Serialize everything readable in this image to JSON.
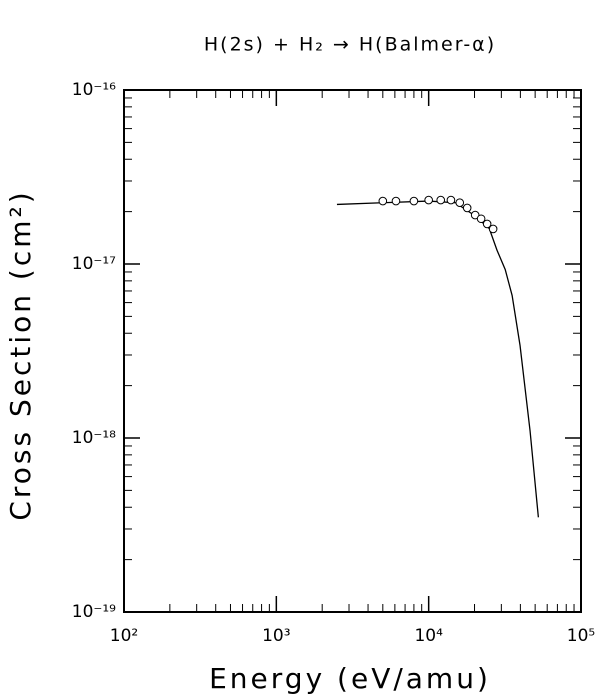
{
  "chart_data": {
    "type": "line",
    "title": "H(2s) + H₂ → H(Balmer-α)",
    "x_label": "Energy (eV/amu)",
    "y_label": "Cross Section (cm²)",
    "xscale": "log",
    "yscale": "log",
    "xlim": [
      100,
      100000
    ],
    "ylim": [
      1e-19,
      1e-16
    ],
    "xticks": [
      {
        "value": 100,
        "label": "10²"
      },
      {
        "value": 1000,
        "label": "10³"
      },
      {
        "value": 10000,
        "label": "10⁴"
      },
      {
        "value": 100000,
        "label": "10⁵"
      }
    ],
    "yticks": [
      {
        "value": 1e-19,
        "label": "10⁻¹⁹"
      },
      {
        "value": 1e-18,
        "label": "10⁻¹⁸"
      },
      {
        "value": 1e-17,
        "label": "10⁻¹⁷"
      },
      {
        "value": 1e-16,
        "label": "10⁻¹⁶"
      }
    ],
    "color": "#000000",
    "fit": {
      "x": [
        2500,
        5000,
        10000,
        15000,
        20000,
        25000,
        28100,
        31800,
        35300,
        39800,
        46300,
        52500
      ],
      "y": [
        2.2e-17,
        2.25e-17,
        2.3e-17,
        2.25e-17,
        1.9e-17,
        1.6e-17,
        1.2e-17,
        9.3e-18,
        6.6e-18,
        3.4e-18,
        1.1e-18,
        3.5e-19
      ]
    },
    "points": {
      "x": [
        5000,
        6100,
        8000,
        10000,
        12000,
        14000,
        16000,
        17900,
        20200,
        22100,
        24200,
        26500
      ],
      "y": [
        2.3e-17,
        2.3e-17,
        2.3e-17,
        2.33e-17,
        2.33e-17,
        2.33e-17,
        2.25e-17,
        2.1e-17,
        1.91e-17,
        1.82e-17,
        1.7e-17,
        1.59e-17
      ]
    }
  }
}
